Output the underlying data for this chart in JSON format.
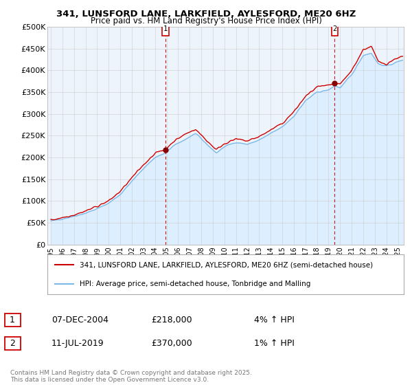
{
  "title_line1": "341, LUNSFORD LANE, LARKFIELD, AYLESFORD, ME20 6HZ",
  "title_line2": "Price paid vs. HM Land Registry's House Price Index (HPI)",
  "ylabel_ticks": [
    "£0",
    "£50K",
    "£100K",
    "£150K",
    "£200K",
    "£250K",
    "£300K",
    "£350K",
    "£400K",
    "£450K",
    "£500K"
  ],
  "ytick_values": [
    0,
    50000,
    100000,
    150000,
    200000,
    250000,
    300000,
    350000,
    400000,
    450000,
    500000
  ],
  "ylim": [
    0,
    500000
  ],
  "xlim_start": 1994.7,
  "xlim_end": 2025.5,
  "xtick_years": [
    1995,
    1996,
    1997,
    1998,
    1999,
    2000,
    2001,
    2002,
    2003,
    2004,
    2005,
    2006,
    2007,
    2008,
    2009,
    2010,
    2011,
    2012,
    2013,
    2014,
    2015,
    2016,
    2017,
    2018,
    2019,
    2020,
    2021,
    2022,
    2023,
    2024,
    2025
  ],
  "hpi_color": "#7ab8e8",
  "hpi_fill_color": "#ddeeff",
  "price_color": "#cc0000",
  "marker1_x": 2004.92,
  "marker1_y": 218000,
  "marker2_x": 2019.53,
  "marker2_y": 370000,
  "vline1_x": 2004.92,
  "vline2_x": 2019.53,
  "legend_line1": "341, LUNSFORD LANE, LARKFIELD, AYLESFORD, ME20 6HZ (semi-detached house)",
  "legend_line2": "HPI: Average price, semi-detached house, Tonbridge and Malling",
  "annotation1_num": "1",
  "annotation1_date": "07-DEC-2004",
  "annotation1_price": "£218,000",
  "annotation1_hpi": "4% ↑ HPI",
  "annotation2_num": "2",
  "annotation2_date": "11-JUL-2019",
  "annotation2_price": "£370,000",
  "annotation2_hpi": "1% ↑ HPI",
  "footer": "Contains HM Land Registry data © Crown copyright and database right 2025.\nThis data is licensed under the Open Government Licence v3.0.",
  "background_color": "#ffffff",
  "grid_color": "#cccccc",
  "chart_bg_color": "#eef4fb"
}
